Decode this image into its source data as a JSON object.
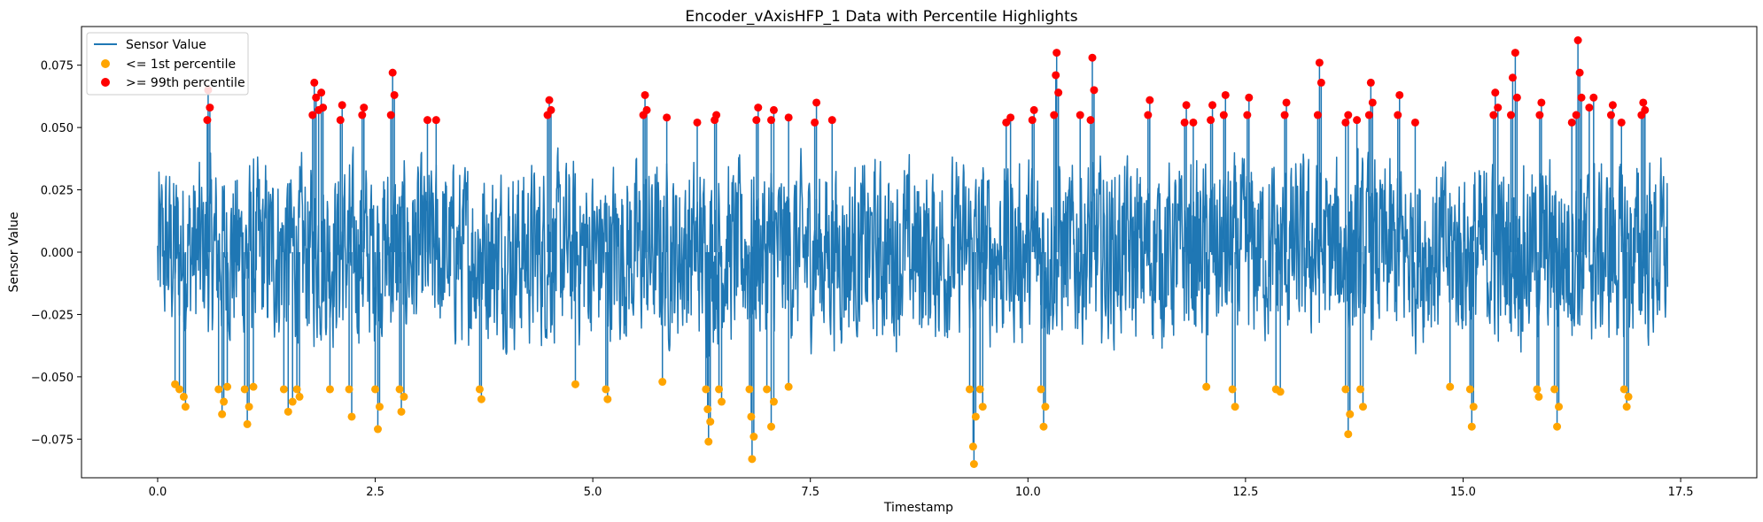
{
  "chart_data": {
    "type": "line",
    "title": "Encoder_vAxisHFP_1 Data with Percentile Highlights",
    "xlabel": "Timestamp",
    "ylabel": "Sensor Value",
    "xlim": [
      -0.875,
      18.375
    ],
    "ylim": [
      -0.0905,
      0.0905
    ],
    "x_ticks": [
      0.0,
      2.5,
      5.0,
      7.5,
      10.0,
      12.5,
      15.0,
      17.5
    ],
    "x_tick_labels": [
      "0.0",
      "2.5",
      "5.0",
      "7.5",
      "10.0",
      "12.5",
      "15.0",
      "17.5"
    ],
    "y_ticks": [
      -0.075,
      -0.05,
      -0.025,
      0.0,
      0.025,
      0.05,
      0.075
    ],
    "y_tick_labels": [
      "−0.075",
      "−0.050",
      "−0.025",
      "0.000",
      "0.025",
      "0.050",
      "0.075"
    ],
    "grid": false,
    "legend_position": "top-left",
    "x_range": [
      0.0,
      17.35
    ],
    "line_color": "#1f77b4",
    "series": [
      {
        "name": "Sensor Value",
        "kind": "line",
        "color": "#1f77b4"
      },
      {
        "name": "<= 1st percentile",
        "kind": "scatter",
        "color": "#ffa500",
        "points": [
          [
            0.2,
            -0.053
          ],
          [
            0.25,
            -0.055
          ],
          [
            0.3,
            -0.058
          ],
          [
            0.32,
            -0.062
          ],
          [
            0.7,
            -0.055
          ],
          [
            0.74,
            -0.065
          ],
          [
            0.76,
            -0.06
          ],
          [
            0.8,
            -0.054
          ],
          [
            1.0,
            -0.055
          ],
          [
            1.03,
            -0.069
          ],
          [
            1.05,
            -0.062
          ],
          [
            1.1,
            -0.054
          ],
          [
            1.45,
            -0.055
          ],
          [
            1.5,
            -0.064
          ],
          [
            1.55,
            -0.06
          ],
          [
            1.6,
            -0.055
          ],
          [
            1.63,
            -0.058
          ],
          [
            1.98,
            -0.055
          ],
          [
            2.2,
            -0.055
          ],
          [
            2.23,
            -0.066
          ],
          [
            2.5,
            -0.055
          ],
          [
            2.53,
            -0.071
          ],
          [
            2.55,
            -0.062
          ],
          [
            2.78,
            -0.055
          ],
          [
            2.8,
            -0.064
          ],
          [
            2.83,
            -0.058
          ],
          [
            3.7,
            -0.055
          ],
          [
            3.72,
            -0.059
          ],
          [
            4.8,
            -0.053
          ],
          [
            5.15,
            -0.055
          ],
          [
            5.17,
            -0.059
          ],
          [
            5.8,
            -0.052
          ],
          [
            6.3,
            -0.055
          ],
          [
            6.32,
            -0.063
          ],
          [
            6.33,
            -0.076
          ],
          [
            6.35,
            -0.068
          ],
          [
            6.45,
            -0.055
          ],
          [
            6.48,
            -0.06
          ],
          [
            6.8,
            -0.055
          ],
          [
            6.82,
            -0.066
          ],
          [
            6.83,
            -0.083
          ],
          [
            6.85,
            -0.074
          ],
          [
            7.0,
            -0.055
          ],
          [
            7.05,
            -0.07
          ],
          [
            7.08,
            -0.06
          ],
          [
            7.25,
            -0.054
          ],
          [
            9.33,
            -0.055
          ],
          [
            9.37,
            -0.078
          ],
          [
            9.38,
            -0.085
          ],
          [
            9.4,
            -0.066
          ],
          [
            9.45,
            -0.055
          ],
          [
            9.48,
            -0.062
          ],
          [
            10.15,
            -0.055
          ],
          [
            10.18,
            -0.07
          ],
          [
            10.2,
            -0.062
          ],
          [
            12.05,
            -0.054
          ],
          [
            12.35,
            -0.055
          ],
          [
            12.38,
            -0.062
          ],
          [
            12.85,
            -0.055
          ],
          [
            12.9,
            -0.056
          ],
          [
            13.65,
            -0.055
          ],
          [
            13.68,
            -0.073
          ],
          [
            13.7,
            -0.065
          ],
          [
            13.82,
            -0.055
          ],
          [
            13.85,
            -0.062
          ],
          [
            14.85,
            -0.054
          ],
          [
            15.08,
            -0.055
          ],
          [
            15.1,
            -0.07
          ],
          [
            15.12,
            -0.062
          ],
          [
            15.85,
            -0.055
          ],
          [
            15.87,
            -0.058
          ],
          [
            16.05,
            -0.055
          ],
          [
            16.08,
            -0.07
          ],
          [
            16.1,
            -0.062
          ],
          [
            16.85,
            -0.055
          ],
          [
            16.88,
            -0.062
          ],
          [
            16.9,
            -0.058
          ]
        ]
      },
      {
        "name": ">= 99th percentile",
        "kind": "scatter",
        "color": "#ff0000",
        "points": [
          [
            0.57,
            0.053
          ],
          [
            0.58,
            0.065
          ],
          [
            0.6,
            0.058
          ],
          [
            1.78,
            0.055
          ],
          [
            1.8,
            0.068
          ],
          [
            1.82,
            0.062
          ],
          [
            1.85,
            0.057
          ],
          [
            1.88,
            0.064
          ],
          [
            1.9,
            0.058
          ],
          [
            2.1,
            0.053
          ],
          [
            2.12,
            0.059
          ],
          [
            2.35,
            0.055
          ],
          [
            2.37,
            0.058
          ],
          [
            2.68,
            0.055
          ],
          [
            2.7,
            0.072
          ],
          [
            2.72,
            0.063
          ],
          [
            3.1,
            0.053
          ],
          [
            3.2,
            0.053
          ],
          [
            4.48,
            0.055
          ],
          [
            4.5,
            0.061
          ],
          [
            4.52,
            0.057
          ],
          [
            5.58,
            0.055
          ],
          [
            5.6,
            0.063
          ],
          [
            5.62,
            0.057
          ],
          [
            5.85,
            0.054
          ],
          [
            6.2,
            0.052
          ],
          [
            6.4,
            0.053
          ],
          [
            6.42,
            0.055
          ],
          [
            6.88,
            0.053
          ],
          [
            6.9,
            0.058
          ],
          [
            7.05,
            0.053
          ],
          [
            7.08,
            0.057
          ],
          [
            7.25,
            0.054
          ],
          [
            7.55,
            0.052
          ],
          [
            7.57,
            0.06
          ],
          [
            7.75,
            0.053
          ],
          [
            9.75,
            0.052
          ],
          [
            9.8,
            0.054
          ],
          [
            10.05,
            0.053
          ],
          [
            10.07,
            0.057
          ],
          [
            10.3,
            0.055
          ],
          [
            10.32,
            0.071
          ],
          [
            10.33,
            0.08
          ],
          [
            10.35,
            0.064
          ],
          [
            10.6,
            0.055
          ],
          [
            10.72,
            0.053
          ],
          [
            10.74,
            0.078
          ],
          [
            10.76,
            0.065
          ],
          [
            11.38,
            0.055
          ],
          [
            11.4,
            0.061
          ],
          [
            11.8,
            0.052
          ],
          [
            11.82,
            0.059
          ],
          [
            11.9,
            0.052
          ],
          [
            12.1,
            0.053
          ],
          [
            12.12,
            0.059
          ],
          [
            12.25,
            0.055
          ],
          [
            12.27,
            0.063
          ],
          [
            12.52,
            0.055
          ],
          [
            12.54,
            0.062
          ],
          [
            12.95,
            0.055
          ],
          [
            12.97,
            0.06
          ],
          [
            13.33,
            0.055
          ],
          [
            13.35,
            0.076
          ],
          [
            13.37,
            0.068
          ],
          [
            13.65,
            0.052
          ],
          [
            13.68,
            0.055
          ],
          [
            13.78,
            0.053
          ],
          [
            13.92,
            0.055
          ],
          [
            13.94,
            0.068
          ],
          [
            13.96,
            0.06
          ],
          [
            14.25,
            0.055
          ],
          [
            14.27,
            0.063
          ],
          [
            14.45,
            0.052
          ],
          [
            15.35,
            0.055
          ],
          [
            15.37,
            0.064
          ],
          [
            15.4,
            0.058
          ],
          [
            15.55,
            0.055
          ],
          [
            15.57,
            0.07
          ],
          [
            15.6,
            0.08
          ],
          [
            15.62,
            0.062
          ],
          [
            15.88,
            0.055
          ],
          [
            15.9,
            0.06
          ],
          [
            16.25,
            0.052
          ],
          [
            16.3,
            0.055
          ],
          [
            16.32,
            0.085
          ],
          [
            16.34,
            0.072
          ],
          [
            16.36,
            0.062
          ],
          [
            16.45,
            0.058
          ],
          [
            16.5,
            0.062
          ],
          [
            16.7,
            0.055
          ],
          [
            16.72,
            0.059
          ],
          [
            16.82,
            0.052
          ],
          [
            17.05,
            0.055
          ],
          [
            17.07,
            0.06
          ],
          [
            17.09,
            0.057
          ]
        ]
      }
    ]
  }
}
